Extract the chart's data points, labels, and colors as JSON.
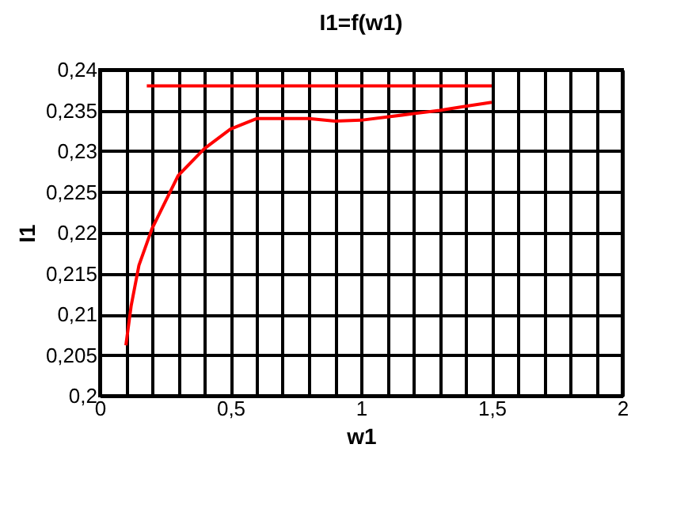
{
  "chart_data": {
    "type": "line",
    "title": "I1=f(w1)",
    "xlabel": "w1",
    "ylabel": "I1",
    "series": [
      {
        "color": "#ff0000",
        "x": [
          0.1,
          0.12,
          0.15,
          0.2,
          0.3,
          0.4,
          0.5,
          0.6,
          0.7,
          0.8,
          0.9,
          1.0,
          1.1,
          1.2,
          1.3,
          1.4,
          1.5
        ],
        "values": [
          0.2062,
          0.211,
          0.216,
          0.2205,
          0.227,
          0.2303,
          0.2327,
          0.234,
          0.234,
          0.234,
          0.2337,
          0.2338,
          0.2342,
          0.2346,
          0.235,
          0.2355,
          0.236
        ]
      },
      {
        "color": "#ff0000",
        "x": [
          0.18,
          1.5
        ],
        "values": [
          0.238,
          0.238
        ]
      }
    ],
    "xlim": [
      0,
      2
    ],
    "xticks": [
      {
        "value": 0,
        "label": "0"
      },
      {
        "value": 0.1,
        "label": null
      },
      {
        "value": 0.2,
        "label": null
      },
      {
        "value": 0.3,
        "label": null
      },
      {
        "value": 0.4,
        "label": null
      },
      {
        "value": 0.5,
        "label": "0,5"
      },
      {
        "value": 0.6,
        "label": null
      },
      {
        "value": 0.7,
        "label": null
      },
      {
        "value": 0.8,
        "label": null
      },
      {
        "value": 0.9,
        "label": null
      },
      {
        "value": 1,
        "label": "1"
      },
      {
        "value": 1.1,
        "label": null
      },
      {
        "value": 1.2,
        "label": null
      },
      {
        "value": 1.3,
        "label": null
      },
      {
        "value": 1.4,
        "label": null
      },
      {
        "value": 1.5,
        "label": "1,5"
      },
      {
        "value": 1.6,
        "label": null
      },
      {
        "value": 1.7,
        "label": null
      },
      {
        "value": 1.8,
        "label": null
      },
      {
        "value": 1.9,
        "label": null
      },
      {
        "value": 2,
        "label": "2"
      }
    ],
    "ylim": [
      0.2,
      0.24
    ],
    "yticks": [
      {
        "value": 0.2,
        "label": "0,2"
      },
      {
        "value": 0.205,
        "label": "0,205"
      },
      {
        "value": 0.21,
        "label": "0,21"
      },
      {
        "value": 0.215,
        "label": "0,215"
      },
      {
        "value": 0.22,
        "label": "0,22"
      },
      {
        "value": 0.225,
        "label": "0,225"
      },
      {
        "value": 0.23,
        "label": "0,23"
      },
      {
        "value": 0.235,
        "label": "0,235"
      },
      {
        "value": 0.24,
        "label": "0,24"
      }
    ],
    "grid": true,
    "marker": "none",
    "line_style": "solid"
  }
}
